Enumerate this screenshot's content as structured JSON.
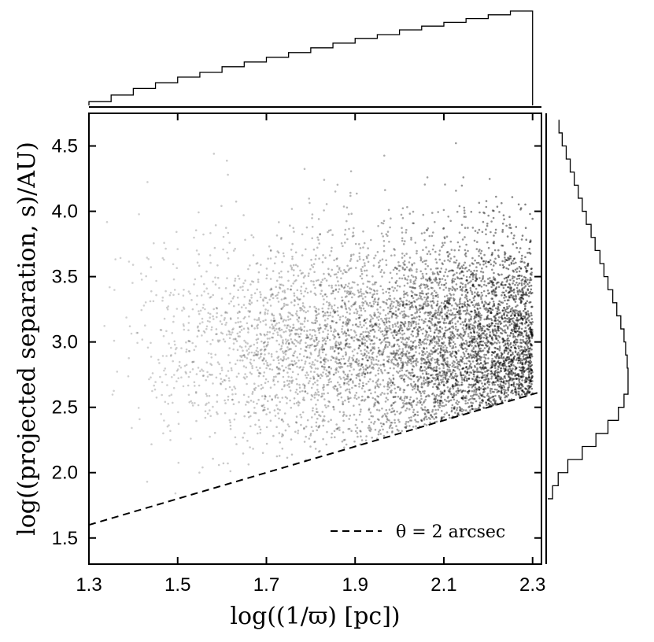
{
  "chart_data": {
    "type": "scatter",
    "xlabel": "log((1/ϖ) [pc])",
    "ylabel": "log((projected separation, s)/AU)",
    "xlim": [
      1.3,
      2.32
    ],
    "ylim": [
      1.3,
      4.75
    ],
    "xticks": [
      "1.3",
      "1.5",
      "1.7",
      "1.9",
      "2.1",
      "2.3"
    ],
    "xtick_values": [
      1.3,
      1.5,
      1.7,
      1.9,
      2.1,
      2.3
    ],
    "yticks": [
      "1.5",
      "2.0",
      "2.5",
      "3.0",
      "3.5",
      "4.0",
      "4.5"
    ],
    "ytick_values": [
      1.5,
      2.0,
      2.5,
      3.0,
      3.5,
      4.0,
      4.5
    ],
    "point_color": "#000000",
    "x_range_of_points": [
      1.3,
      2.3
    ],
    "y_range_of_points": [
      1.55,
      4.7
    ],
    "density_description": "point density increases with x; points lie above the dashed line",
    "reference_line": {
      "label": "θ = 2 arcsec",
      "style": "dashed",
      "x": [
        1.3,
        2.32
      ],
      "y": [
        1.6,
        2.62
      ]
    },
    "legend_position": "bottom-right",
    "grid": false,
    "top_histogram": {
      "x_bin_edges": [
        1.3,
        1.35,
        1.4,
        1.45,
        1.5,
        1.55,
        1.6,
        1.65,
        1.7,
        1.75,
        1.8,
        1.85,
        1.9,
        1.95,
        2.0,
        2.05,
        2.1,
        2.15,
        2.2,
        2.25,
        2.3
      ],
      "relative_heights": [
        0.04,
        0.11,
        0.18,
        0.24,
        0.3,
        0.35,
        0.41,
        0.46,
        0.51,
        0.56,
        0.61,
        0.66,
        0.71,
        0.75,
        0.8,
        0.84,
        0.88,
        0.92,
        0.96,
        1.0
      ]
    },
    "right_histogram": {
      "y_bin_edges": [
        1.8,
        1.9,
        2.0,
        2.1,
        2.2,
        2.3,
        2.4,
        2.5,
        2.6,
        2.7,
        2.8,
        2.9,
        3.0,
        3.1,
        3.2,
        3.3,
        3.4,
        3.5,
        3.6,
        3.7,
        3.8,
        3.9,
        4.0,
        4.1,
        4.2,
        4.3,
        4.4,
        4.5,
        4.6,
        4.7
      ],
      "relative_heights": [
        0.06,
        0.13,
        0.25,
        0.43,
        0.6,
        0.75,
        0.88,
        0.95,
        1.0,
        1.0,
        0.99,
        0.97,
        0.95,
        0.91,
        0.86,
        0.81,
        0.75,
        0.7,
        0.65,
        0.59,
        0.54,
        0.48,
        0.43,
        0.38,
        0.33,
        0.28,
        0.23,
        0.18,
        0.14
      ]
    }
  }
}
